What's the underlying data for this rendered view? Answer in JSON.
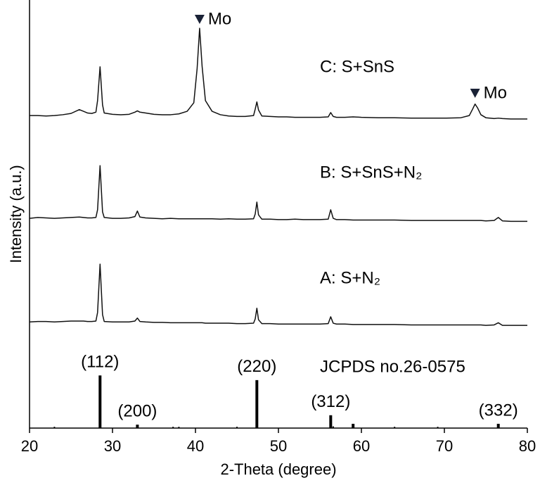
{
  "chart_data": {
    "type": "line",
    "xlabel": "2-Theta (degree)",
    "ylabel": "Intensity (a.u.)",
    "xlim": [
      20,
      80
    ],
    "xticks": [
      20,
      30,
      40,
      50,
      60,
      70,
      80
    ],
    "ylim": [
      0,
      100
    ],
    "grid": false,
    "x": [
      20,
      21,
      22,
      23,
      24,
      25,
      26,
      26.5,
      27,
      27.5,
      28,
      28.2,
      28.5,
      28.8,
      29,
      30,
      31,
      32,
      32.7,
      33,
      33.3,
      34,
      35,
      36,
      37,
      38,
      39,
      39.8,
      40.2,
      40.5,
      40.8,
      41.2,
      42,
      43,
      44,
      45,
      46,
      47,
      47.2,
      47.4,
      47.6,
      48,
      49,
      50,
      51,
      52,
      53,
      54,
      55,
      56,
      56.3,
      56.6,
      57,
      58,
      59,
      60,
      62,
      64,
      66,
      68,
      70,
      72,
      73,
      73.4,
      73.7,
      74,
      74.4,
      75,
      76,
      76.5,
      77,
      78,
      79,
      80
    ],
    "series": [
      {
        "name": "C: S+SnS",
        "color": "#111111",
        "values": [
          73.0,
          73.0,
          72.9,
          73.0,
          73.2,
          73.5,
          74.4,
          74.0,
          73.6,
          73.5,
          73.8,
          76.5,
          84.4,
          75.5,
          73.6,
          73.3,
          73.2,
          73.3,
          73.8,
          74.1,
          73.8,
          73.6,
          73.3,
          73.2,
          73.2,
          73.4,
          74.0,
          76.0,
          84.0,
          93.4,
          84.5,
          76.5,
          74.0,
          73.2,
          72.9,
          72.8,
          72.8,
          73.0,
          74.5,
          76.2,
          74.3,
          72.9,
          72.8,
          72.7,
          72.7,
          72.6,
          72.6,
          72.6,
          72.6,
          72.7,
          73.7,
          72.8,
          72.6,
          72.6,
          72.7,
          72.6,
          72.5,
          72.5,
          72.4,
          72.4,
          72.4,
          72.5,
          73.0,
          74.5,
          75.7,
          74.8,
          73.2,
          72.5,
          72.3,
          72.4,
          72.3,
          72.2,
          72.2,
          72.2
        ]
      },
      {
        "name": "B: S+SnS+N₂",
        "color": "#111111",
        "values": [
          49.0,
          49.2,
          49.1,
          49.0,
          49.1,
          49.2,
          49.3,
          49.2,
          49.1,
          49.1,
          49.2,
          51.0,
          61.3,
          50.5,
          49.2,
          49.0,
          49.0,
          49.1,
          49.4,
          50.7,
          49.3,
          49.1,
          49.0,
          48.9,
          49.0,
          48.9,
          48.9,
          48.9,
          48.9,
          48.9,
          48.9,
          48.9,
          48.9,
          48.8,
          48.9,
          48.8,
          48.8,
          48.9,
          50.0,
          52.8,
          49.8,
          48.8,
          48.8,
          48.7,
          48.7,
          48.8,
          48.7,
          48.7,
          48.7,
          48.8,
          51.0,
          49.0,
          48.7,
          48.7,
          48.6,
          48.6,
          48.6,
          48.6,
          48.5,
          48.5,
          48.5,
          48.5,
          48.5,
          48.5,
          48.5,
          48.5,
          48.5,
          48.4,
          48.5,
          49.2,
          48.4,
          48.3,
          48.3,
          48.3
        ]
      },
      {
        "name": "A: S+N₂",
        "color": "#111111",
        "values": [
          24.8,
          24.9,
          24.9,
          24.8,
          24.9,
          25.0,
          25.0,
          25.0,
          24.9,
          24.9,
          25.0,
          27.0,
          38.3,
          26.5,
          24.9,
          24.8,
          24.8,
          24.8,
          25.0,
          25.7,
          24.9,
          24.8,
          24.7,
          24.7,
          24.6,
          24.6,
          24.6,
          24.6,
          24.6,
          24.6,
          24.6,
          24.5,
          24.5,
          24.5,
          24.5,
          24.4,
          24.4,
          24.5,
          25.5,
          28.0,
          25.3,
          24.4,
          24.4,
          24.3,
          24.3,
          24.3,
          24.3,
          24.3,
          24.3,
          24.4,
          26.0,
          24.5,
          24.3,
          24.3,
          24.2,
          24.2,
          24.2,
          24.2,
          24.1,
          24.1,
          24.1,
          24.1,
          24.1,
          24.1,
          24.1,
          24.1,
          24.1,
          24.0,
          24.1,
          24.6,
          24.0,
          24.0,
          24.0,
          24.0
        ]
      }
    ],
    "reference": {
      "name": "JCPDS no.26-0575",
      "color": "#000000",
      "x": [
        23.0,
        28.5,
        33.0,
        37.3,
        38.0,
        45.0,
        47.4,
        56.3,
        56.6,
        59.0,
        64.0,
        69.2,
        76.5
      ],
      "values": [
        0.3,
        12.3,
        0.8,
        0.3,
        0.3,
        0.3,
        11.2,
        3.0,
        0.4,
        1.0,
        0.3,
        0.3,
        1.0
      ],
      "labels": [
        null,
        "(112)",
        "(200)",
        null,
        null,
        null,
        "(220)",
        "(312)",
        null,
        null,
        null,
        null,
        "(332)"
      ]
    },
    "annotations": [
      {
        "text": "Mo",
        "x": 40.5
      },
      {
        "text": "Mo",
        "x": 73.7
      }
    ]
  }
}
